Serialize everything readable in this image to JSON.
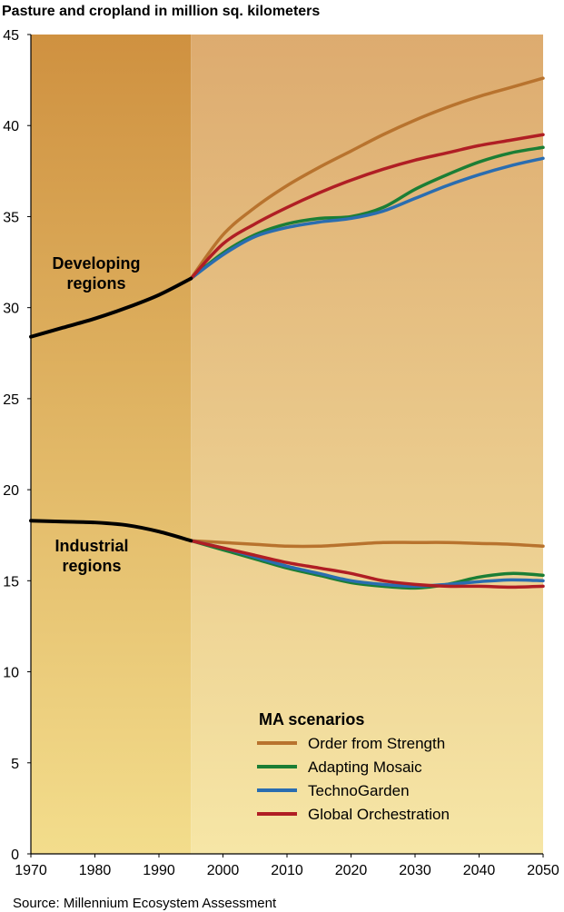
{
  "chart_data": {
    "type": "line",
    "title": "Pasture and cropland in million sq. kilometers",
    "source": "Source: Millennium Ecosystem Assessment",
    "xlim": [
      1970,
      2050
    ],
    "ylim": [
      0,
      45
    ],
    "x_ticks": [
      1970,
      1980,
      1990,
      2000,
      2010,
      2020,
      2030,
      2040,
      2050
    ],
    "y_ticks": [
      0,
      5,
      10,
      15,
      20,
      25,
      30,
      35,
      40,
      45
    ],
    "historical_end_year": 1995,
    "region_labels": {
      "developing": [
        "Developing",
        "regions"
      ],
      "industrial": [
        "Industrial",
        "regions"
      ]
    },
    "legend": {
      "title": "MA scenarios",
      "placement": "bottom-right"
    },
    "colors": {
      "historical": "#000000",
      "Order from Strength": "#b8732e",
      "Adapting Mosaic": "#1b7e35",
      "TechnoGarden": "#2a6db0",
      "Global Orchestration": "#b01e24",
      "bg_historical_top": "#cf9140",
      "bg_historical_bottom": "#f3dd8c",
      "bg_projection_top": "#ddab6f",
      "bg_projection_bottom": "#f6e6a6"
    },
    "historical": [
      {
        "x": [
          1970,
          1975,
          1980,
          1985,
          1990,
          1995
        ],
        "y": [
          28.4,
          28.9,
          29.4,
          30.0,
          30.7,
          31.6
        ]
      },
      {
        "x": [
          1970,
          1975,
          1980,
          1985,
          1990,
          1995
        ],
        "y": [
          18.3,
          18.25,
          18.2,
          18.05,
          17.7,
          17.2
        ]
      }
    ],
    "series": [
      {
        "name": "Order from Strength",
        "developing": {
          "x": [
            1995,
            2000,
            2005,
            2010,
            2015,
            2020,
            2025,
            2030,
            2035,
            2040,
            2045,
            2050
          ],
          "y": [
            31.6,
            34.0,
            35.5,
            36.7,
            37.7,
            38.6,
            39.5,
            40.3,
            41.0,
            41.6,
            42.1,
            42.6
          ]
        },
        "industrial": {
          "x": [
            1995,
            2000,
            2005,
            2010,
            2015,
            2020,
            2025,
            2030,
            2035,
            2040,
            2045,
            2050
          ],
          "y": [
            17.2,
            17.1,
            17.0,
            16.9,
            16.9,
            17.0,
            17.1,
            17.1,
            17.1,
            17.05,
            17.0,
            16.9
          ]
        }
      },
      {
        "name": "Adapting Mosaic",
        "developing": {
          "x": [
            1995,
            2000,
            2005,
            2010,
            2015,
            2020,
            2025,
            2030,
            2035,
            2040,
            2045,
            2050
          ],
          "y": [
            31.6,
            33.0,
            34.0,
            34.6,
            34.9,
            35.0,
            35.5,
            36.5,
            37.3,
            38.0,
            38.5,
            38.8
          ]
        },
        "industrial": {
          "x": [
            1995,
            2000,
            2005,
            2010,
            2015,
            2020,
            2025,
            2030,
            2035,
            2040,
            2045,
            2050
          ],
          "y": [
            17.2,
            16.7,
            16.2,
            15.7,
            15.3,
            14.9,
            14.7,
            14.6,
            14.8,
            15.2,
            15.4,
            15.3
          ]
        }
      },
      {
        "name": "TechnoGarden",
        "developing": {
          "x": [
            1995,
            2000,
            2005,
            2010,
            2015,
            2020,
            2025,
            2030,
            2035,
            2040,
            2045,
            2050
          ],
          "y": [
            31.6,
            32.9,
            33.9,
            34.4,
            34.7,
            34.9,
            35.3,
            36.0,
            36.7,
            37.3,
            37.8,
            38.2
          ]
        },
        "industrial": {
          "x": [
            1995,
            2000,
            2005,
            2010,
            2015,
            2020,
            2025,
            2030,
            2035,
            2040,
            2045,
            2050
          ],
          "y": [
            17.2,
            16.8,
            16.3,
            15.8,
            15.4,
            15.0,
            14.8,
            14.7,
            14.8,
            14.95,
            15.05,
            15.0
          ]
        }
      },
      {
        "name": "Global Orchestration",
        "developing": {
          "x": [
            1995,
            2000,
            2005,
            2010,
            2015,
            2020,
            2025,
            2030,
            2035,
            2040,
            2045,
            2050
          ],
          "y": [
            31.6,
            33.5,
            34.6,
            35.5,
            36.3,
            37.0,
            37.6,
            38.1,
            38.5,
            38.9,
            39.2,
            39.5
          ]
        },
        "industrial": {
          "x": [
            1995,
            2000,
            2005,
            2010,
            2015,
            2020,
            2025,
            2030,
            2035,
            2040,
            2045,
            2050
          ],
          "y": [
            17.2,
            16.8,
            16.4,
            16.0,
            15.7,
            15.4,
            15.0,
            14.8,
            14.7,
            14.7,
            14.65,
            14.7
          ]
        }
      }
    ]
  }
}
